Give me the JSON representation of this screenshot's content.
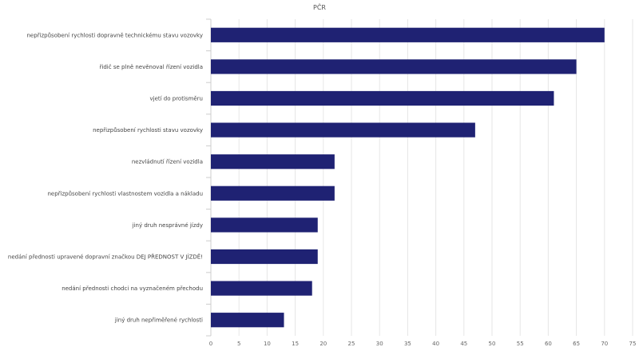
{
  "chart_data": {
    "type": "bar",
    "orientation": "horizontal",
    "title": "PČR",
    "xlabel": "",
    "ylabel": "",
    "xlim": [
      0,
      75
    ],
    "x_ticks": [
      0,
      5,
      10,
      15,
      20,
      25,
      30,
      35,
      40,
      45,
      50,
      55,
      60,
      65,
      70,
      75
    ],
    "grid": true,
    "legend": "none",
    "bar_color": "#1f2273",
    "categories": [
      "nepřizpůsobení rychlosti dopravně technickému stavu vozovky",
      "řidič se plně nevěnoval řízení vozidla",
      "vjetí do protisměru",
      "nepřizpůsobení rychlosti stavu vozovky",
      "nezvládnutí řízení vozidla",
      "nepřizpůsobení rychlosti vlastnostem vozidla a nákladu",
      "jiný druh nesprávné jízdy",
      "nedání přednosti upravené dopravní značkou DEJ PŘEDNOST V JÍZDĚ!",
      "nedání přednosti chodci na vyznačeném přechodu",
      "jiný druh nepřiměřené rychlosti"
    ],
    "values": [
      70,
      65,
      61,
      47,
      22,
      22,
      19,
      19,
      18,
      13
    ]
  }
}
